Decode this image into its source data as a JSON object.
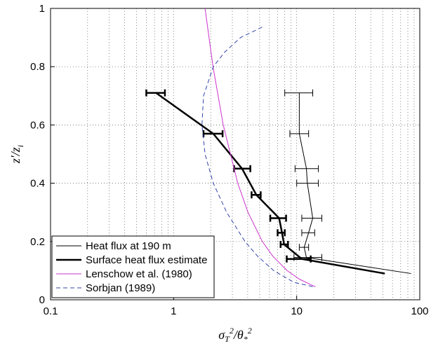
{
  "chart_data": {
    "type": "line",
    "xlabel": [
      "σ",
      "T",
      "2",
      "/θ",
      "*",
      "2"
    ],
    "ylabel": [
      "z′/z",
      "i"
    ],
    "xscale": "log",
    "xlim": [
      0.1,
      100
    ],
    "xticks": [
      0.1,
      1,
      10,
      100
    ],
    "ylim": [
      0,
      1
    ],
    "yticks": [
      0,
      0.2,
      0.4,
      0.6,
      0.8,
      1
    ],
    "grid": true,
    "legend": "lower left",
    "series": [
      {
        "name": "Heat flux at 190 m",
        "color": "#000000",
        "style": "solid",
        "width": 1,
        "y": [
          0.71,
          0.57,
          0.45,
          0.4,
          0.28,
          0.23,
          0.18,
          0.145,
          0.09
        ],
        "x": [
          10.5,
          10.5,
          12,
          12.2,
          13.5,
          12.5,
          11.5,
          12,
          85
        ],
        "x_low": [
          8,
          8.8,
          9.7,
          10,
          11,
          11,
          10.5,
          9.5,
          null
        ],
        "x_high": [
          13.5,
          12.5,
          15,
          15,
          16,
          14,
          12.5,
          16,
          null
        ]
      },
      {
        "name": "Surface heat flux estimate",
        "color": "#000000",
        "style": "solid",
        "width": 2.5,
        "y": [
          0.71,
          0.57,
          0.45,
          0.36,
          0.28,
          0.23,
          0.19,
          0.14,
          0.09
        ],
        "x": [
          0.72,
          2.1,
          3.6,
          4.7,
          7.2,
          7.6,
          7.9,
          11,
          52
        ],
        "x_low": [
          0.6,
          1.75,
          3.1,
          4.3,
          6.1,
          7.0,
          7.4,
          8.3,
          null
        ],
        "x_high": [
          0.85,
          2.5,
          4.2,
          5.1,
          8.2,
          8.0,
          8.5,
          13,
          null
        ]
      },
      {
        "name": "Lenschow et al. (1980)",
        "color": "#cc33cc",
        "style": "solid",
        "width": 1,
        "y": [
          1.0,
          0.8,
          0.6,
          0.4,
          0.3,
          0.2,
          0.15,
          0.1,
          0.07,
          0.05,
          0.045
        ],
        "x": [
          1.8,
          2.09,
          2.53,
          3.32,
          4.02,
          5.26,
          6.38,
          8.36,
          10.6,
          13.3,
          14.2
        ]
      },
      {
        "name": "Sorbjan (1989)",
        "color": "#3344aa",
        "style": "dashed",
        "width": 1,
        "y": [
          0.045,
          0.06,
          0.1,
          0.15,
          0.2,
          0.3,
          0.4,
          0.5,
          0.6,
          0.7,
          0.8,
          0.85,
          0.9,
          0.94
        ],
        "x": [
          13.5,
          9.5,
          6.5,
          4.8,
          3.8,
          2.7,
          2.1,
          1.8,
          1.7,
          1.75,
          2.1,
          2.6,
          3.5,
          5.5
        ]
      }
    ]
  }
}
